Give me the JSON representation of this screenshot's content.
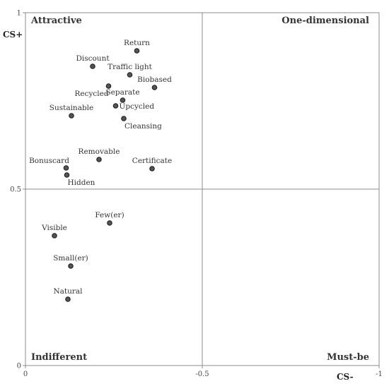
{
  "chart_data": {
    "type": "scatter",
    "title": "",
    "xlabel": "CS-",
    "ylabel": "CS+",
    "xlim": [
      0,
      -1
    ],
    "ylim": [
      0,
      1
    ],
    "x_ticks": [
      {
        "value": 0,
        "label": "0"
      },
      {
        "value": -0.5,
        "label": "-0.5"
      },
      {
        "value": -1,
        "label": "-1"
      }
    ],
    "y_ticks": [
      {
        "value": 0,
        "label": "0"
      },
      {
        "value": 0.5,
        "label": "0.5"
      },
      {
        "value": 1,
        "label": "1"
      }
    ],
    "quadrants": {
      "top_left": "Attractive",
      "top_right": "One-dimensional",
      "bottom_left": "Indifferent",
      "bottom_right": "Must-be"
    },
    "points": [
      {
        "label": "Return",
        "x": -0.315,
        "y": 0.892,
        "label_pos": "above"
      },
      {
        "label": "Discount",
        "x": -0.19,
        "y": 0.848,
        "label_pos": "above"
      },
      {
        "label": "Traffic light",
        "x": -0.295,
        "y": 0.824,
        "label_pos": "above"
      },
      {
        "label": "Biobased",
        "x": -0.365,
        "y": 0.788,
        "label_pos": "above"
      },
      {
        "label": "Recycled",
        "x": -0.235,
        "y": 0.792,
        "label_pos": "below-left"
      },
      {
        "label": "Separate",
        "x": -0.275,
        "y": 0.752,
        "label_pos": "above"
      },
      {
        "label": "Upcycled",
        "x": -0.255,
        "y": 0.736,
        "label_pos": "right"
      },
      {
        "label": "Sustainable",
        "x": -0.13,
        "y": 0.708,
        "label_pos": "above"
      },
      {
        "label": "Cleansing",
        "x": -0.278,
        "y": 0.7,
        "label_pos": "below-right"
      },
      {
        "label": "Removable",
        "x": -0.208,
        "y": 0.584,
        "label_pos": "above"
      },
      {
        "label": "Certificate",
        "x": -0.358,
        "y": 0.558,
        "label_pos": "above"
      },
      {
        "label": "Bonuscard",
        "x": -0.115,
        "y": 0.56,
        "label_pos": "above-left"
      },
      {
        "label": "Hidden",
        "x": -0.117,
        "y": 0.54,
        "label_pos": "below-right"
      },
      {
        "label": "Few(er)",
        "x": -0.238,
        "y": 0.404,
        "label_pos": "above"
      },
      {
        "label": "Visible",
        "x": -0.082,
        "y": 0.368,
        "label_pos": "above"
      },
      {
        "label": "Small(er)",
        "x": -0.128,
        "y": 0.282,
        "label_pos": "above"
      },
      {
        "label": "Natural",
        "x": -0.12,
        "y": 0.188,
        "label_pos": "above"
      }
    ],
    "colors": {
      "point_fill": "#555555",
      "point_stroke": "#222222",
      "axis": "#8c8c8c"
    },
    "grid": false,
    "legend": "none"
  }
}
